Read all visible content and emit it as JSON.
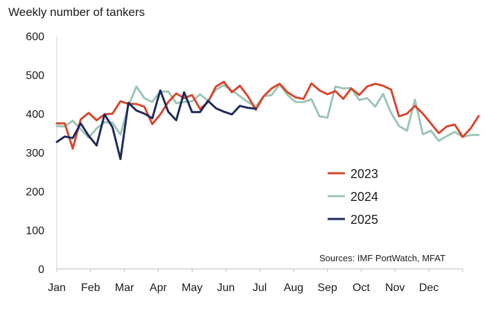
{
  "chart_data": {
    "type": "line",
    "title": "Weekly number of tankers",
    "source": "Sources: IMF PortWatch, MFAT",
    "ylim": [
      0,
      600
    ],
    "yticks": [
      0,
      100,
      200,
      300,
      400,
      500,
      600
    ],
    "x_week_range": [
      1,
      52
    ],
    "months": [
      "Jan",
      "Feb",
      "Mar",
      "Apr",
      "May",
      "Jun",
      "Jul",
      "Aug",
      "Sep",
      "Oct",
      "Nov",
      "Dec"
    ],
    "grid": false,
    "legend": "right-center",
    "series": [
      {
        "name": "2023",
        "color": "#d9452b",
        "values": [
          375,
          375,
          310,
          385,
          402,
          383,
          398,
          400,
          432,
          425,
          425,
          418,
          373,
          398,
          430,
          452,
          440,
          448,
          412,
          430,
          470,
          482,
          455,
          472,
          445,
          410,
          445,
          465,
          477,
          455,
          442,
          438,
          478,
          460,
          450,
          458,
          438,
          465,
          448,
          470,
          477,
          472,
          462,
          393,
          400,
          420,
          400,
          375,
          350,
          367,
          372,
          340,
          362,
          394
        ]
      },
      {
        "name": "2024",
        "color": "#9cc5b5",
        "values": [
          368,
          367,
          382,
          360,
          338,
          362,
          378,
          377,
          346,
          420,
          470,
          440,
          430,
          457,
          457,
          427,
          430,
          432,
          450,
          433,
          462,
          473,
          460,
          445,
          430,
          418,
          445,
          448,
          475,
          448,
          430,
          430,
          437,
          393,
          390,
          470,
          465,
          466,
          435,
          440,
          418,
          451,
          402,
          368,
          356,
          436,
          347,
          356,
          330,
          342,
          353,
          340,
          345,
          345
        ]
      },
      {
        "name": "2025",
        "color": "#1e2a5a",
        "values": [
          327,
          341,
          337,
          375,
          343,
          318,
          398,
          365,
          283,
          428,
          408,
          400,
          388,
          460,
          405,
          383,
          455,
          404,
          404,
          433,
          414,
          405,
          398,
          420,
          415,
          413
        ]
      }
    ]
  }
}
